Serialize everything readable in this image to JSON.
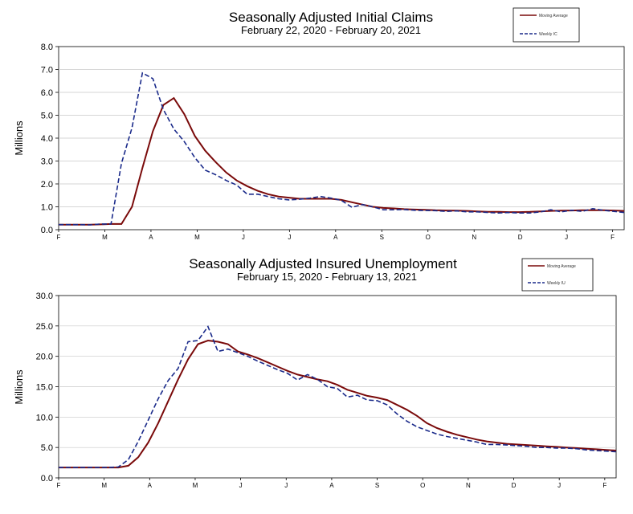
{
  "chart_data": [
    {
      "type": "line",
      "title": "Seasonally Adjusted Initial Claims",
      "subtitle": "February 22, 2020 - February 20, 2021",
      "ylabel": "Millions",
      "xlabel": "",
      "ylim": [
        0,
        8
      ],
      "yticks": [
        "0.0",
        "1.0",
        "2.0",
        "3.0",
        "4.0",
        "5.0",
        "6.0",
        "7.0",
        "8.0"
      ],
      "xticks": [
        "F",
        "M",
        "A",
        "M",
        "J",
        "J",
        "A",
        "S",
        "O",
        "N",
        "D",
        "J",
        "F"
      ],
      "grid": true,
      "legend_position": "top-right",
      "series": [
        {
          "name": "Moving Average",
          "color": "#7a0a0a",
          "dash": "solid",
          "values": [
            0.22,
            0.22,
            0.22,
            0.22,
            0.23,
            0.25,
            0.25,
            1.0,
            2.7,
            4.3,
            5.45,
            5.75,
            5.05,
            4.1,
            3.45,
            2.95,
            2.5,
            2.15,
            1.9,
            1.7,
            1.55,
            1.45,
            1.4,
            1.35,
            1.35,
            1.35,
            1.35,
            1.3,
            1.2,
            1.1,
            1.0,
            0.95,
            0.93,
            0.9,
            0.88,
            0.87,
            0.85,
            0.84,
            0.83,
            0.82,
            0.8,
            0.78,
            0.78,
            0.77,
            0.77,
            0.78,
            0.8,
            0.82,
            0.83,
            0.84,
            0.85,
            0.85,
            0.85,
            0.84,
            0.82
          ]
        },
        {
          "name": "Weekly IC",
          "color": "#1a2a8a",
          "dash": "dashed",
          "values": [
            0.22,
            0.22,
            0.22,
            0.21,
            0.25,
            0.25,
            2.9,
            4.45,
            6.85,
            6.6,
            5.25,
            4.4,
            3.85,
            3.15,
            2.6,
            2.4,
            2.15,
            1.95,
            1.55,
            1.55,
            1.45,
            1.35,
            1.3,
            1.33,
            1.38,
            1.45,
            1.38,
            1.28,
            0.98,
            1.1,
            1.0,
            0.87,
            0.87,
            0.88,
            0.85,
            0.84,
            0.83,
            0.8,
            0.82,
            0.78,
            0.78,
            0.75,
            0.73,
            0.75,
            0.73,
            0.73,
            0.78,
            0.87,
            0.78,
            0.85,
            0.8,
            0.92,
            0.85,
            0.8,
            0.75
          ]
        }
      ]
    },
    {
      "type": "line",
      "title": "Seasonally Adjusted Insured Unemployment",
      "subtitle": "February 15, 2020 - February 13, 2021",
      "ylabel": "Millions",
      "xlabel": "",
      "ylim": [
        0,
        30
      ],
      "yticks": [
        "0.0",
        "5.0",
        "10.0",
        "15.0",
        "20.0",
        "25.0",
        "30.0"
      ],
      "xticks": [
        "F",
        "M",
        "A",
        "M",
        "J",
        "J",
        "A",
        "S",
        "O",
        "N",
        "D",
        "J",
        "F"
      ],
      "grid": true,
      "legend_position": "top-right",
      "series": [
        {
          "name": "Moving Average",
          "color": "#7a0a0a",
          "dash": "solid",
          "values": [
            1.7,
            1.7,
            1.7,
            1.7,
            1.7,
            1.7,
            1.7,
            2.0,
            3.4,
            5.8,
            9.0,
            12.6,
            16.2,
            19.5,
            22.0,
            22.6,
            22.4,
            22.0,
            20.8,
            20.3,
            19.7,
            19.0,
            18.3,
            17.6,
            17.0,
            16.6,
            16.2,
            15.9,
            15.3,
            14.5,
            14.0,
            13.5,
            13.2,
            12.8,
            12.0,
            11.2,
            10.2,
            9.0,
            8.2,
            7.6,
            7.1,
            6.7,
            6.3,
            6.0,
            5.8,
            5.6,
            5.5,
            5.4,
            5.3,
            5.2,
            5.1,
            5.0,
            4.9,
            4.8,
            4.7,
            4.6,
            4.5
          ]
        },
        {
          "name": "Weekly IU",
          "color": "#1a2a8a",
          "dash": "dashed",
          "values": [
            1.7,
            1.7,
            1.7,
            1.7,
            1.7,
            1.7,
            1.8,
            3.0,
            6.0,
            9.5,
            13.0,
            16.0,
            18.0,
            22.4,
            22.6,
            24.9,
            20.8,
            21.2,
            20.6,
            20.0,
            19.2,
            18.5,
            17.8,
            17.2,
            16.1,
            17.0,
            16.2,
            15.0,
            14.7,
            13.3,
            13.6,
            12.8,
            12.7,
            12.0,
            10.5,
            9.3,
            8.4,
            7.8,
            7.2,
            6.8,
            6.5,
            6.2,
            5.9,
            5.5,
            5.5,
            5.4,
            5.3,
            5.2,
            5.0,
            5.0,
            4.9,
            4.9,
            4.8,
            4.6,
            4.5,
            4.4,
            4.3
          ]
        }
      ]
    }
  ]
}
